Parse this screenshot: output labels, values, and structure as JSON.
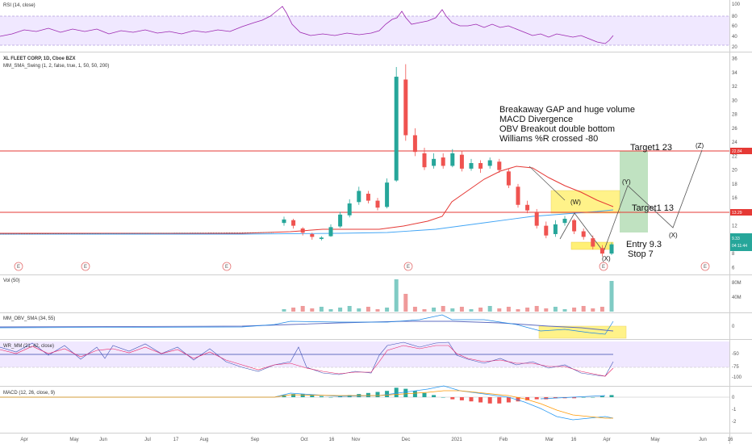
{
  "colors": {
    "up": "#26a69a",
    "down": "#ef5350",
    "rsi_line": "#9c27b0",
    "band_fill": "#e8dcff",
    "hline_red": "#e53935",
    "sma_red": "#e53935",
    "sma_blue": "#2196f3",
    "obv_line": "#1e88e5",
    "obv_sma": "#7e57c2",
    "highlight_yellow": "#ffeb3b",
    "target_green": "#a5d6a7"
  },
  "panes": {
    "rsi": {
      "title": "RSI (14, close)",
      "ticks": [
        "100",
        "80",
        "60",
        "40",
        "20"
      ]
    },
    "price": {
      "title": "XL FLEET CORP, 1D, Cboe BZX",
      "subtitle": "MM_SMA_Swing (1, 2, false, true, 1, 50, 50, 200)",
      "ticks": [
        "36",
        "34",
        "32",
        "30",
        "28",
        "26",
        "24",
        "22",
        "20",
        "18",
        "16",
        "14",
        "12",
        "10",
        "8",
        "6"
      ],
      "tag_high": "22.84",
      "tag_mid": "13.29",
      "tag_last": "9.33",
      "tag_last2": "04:11:44",
      "earnings": [
        "E",
        "E",
        "E",
        "E",
        "E",
        "E"
      ]
    },
    "vol": {
      "title": "Vol (50)",
      "ticks": [
        "80M",
        "40M"
      ]
    },
    "obv": {
      "title": "MM_OBV_SMA (34, 55)",
      "ticks": [
        "0"
      ]
    },
    "wr": {
      "title": "WR_MM (21, 42, close)",
      "ticks": [
        "-50",
        "-75",
        "-100"
      ]
    },
    "macd": {
      "title": "MACD (12, 26, close, 9)",
      "ticks": [
        "0",
        "-1",
        "-2"
      ]
    }
  },
  "annotations": {
    "line1": "Breakaway GAP and huge volume",
    "line2": "MACD Divergence",
    "line3": "OBV Breakout double bottom",
    "line4": "Williams %R crossed -80",
    "target1_top": "Target1 23",
    "target1_mid": "Target1 13",
    "entry": "Entry 9.3",
    "stop": "Stop 7",
    "w": "(W)",
    "x1": "(X)",
    "y": "(Y)",
    "x2": "(X)",
    "z": "(Z)"
  },
  "x_axis": [
    "Apr",
    "May",
    "Jun",
    "Jul",
    "17",
    "Aug",
    "Sep",
    "Oct",
    "16",
    "Nov",
    "Dec",
    "2021",
    "Feb",
    "Mar",
    "16",
    "Apr",
    "May",
    "Jun",
    "16"
  ],
  "chart_data": {
    "type": "candlestick",
    "title": "XL FLEET CORP, 1D, Cboe BZX",
    "ylim": [
      5,
      37
    ],
    "hlines": [
      22.84,
      13.29
    ],
    "candles": [
      {
        "x": "Sep",
        "o": 12.4,
        "c": 12.9,
        "h": 13.3,
        "l": 12.0
      },
      {
        "x": "Sep",
        "o": 12.8,
        "c": 12.0,
        "h": 13.0,
        "l": 11.6
      },
      {
        "x": "Oct",
        "o": 11.6,
        "c": 11.0,
        "h": 11.8,
        "l": 10.6
      },
      {
        "x": "Oct",
        "o": 10.8,
        "c": 10.4,
        "h": 11.0,
        "l": 10.0
      },
      {
        "x": "Nov",
        "o": 10.1,
        "c": 10.3,
        "h": 10.5,
        "l": 9.9
      },
      {
        "x": "Nov",
        "o": 10.5,
        "c": 11.8,
        "h": 12.2,
        "l": 10.4
      },
      {
        "x": "Nov",
        "o": 11.9,
        "c": 13.6,
        "h": 14.0,
        "l": 11.7
      },
      {
        "x": "Dec",
        "o": 13.5,
        "c": 15.2,
        "h": 15.8,
        "l": 13.2
      },
      {
        "x": "Dec",
        "o": 15.4,
        "c": 17.0,
        "h": 17.6,
        "l": 15.0
      },
      {
        "x": "Dec",
        "o": 16.6,
        "c": 15.6,
        "h": 17.0,
        "l": 15.2
      },
      {
        "x": "Dec",
        "o": 15.6,
        "c": 14.6,
        "h": 16.0,
        "l": 14.2
      },
      {
        "x": "Dec",
        "o": 14.7,
        "c": 18.2,
        "h": 18.8,
        "l": 14.5
      },
      {
        "x": "Dec",
        "o": 18.5,
        "c": 33.4,
        "h": 34.8,
        "l": 18.3
      },
      {
        "x": "Dec",
        "o": 33.0,
        "c": 25.0,
        "h": 35.2,
        "l": 24.2
      },
      {
        "x": "2021",
        "o": 25.0,
        "c": 22.6,
        "h": 26.0,
        "l": 22.0
      },
      {
        "x": "2021",
        "o": 22.4,
        "c": 20.4,
        "h": 23.2,
        "l": 20.0
      },
      {
        "x": "2021",
        "o": 20.6,
        "c": 21.6,
        "h": 22.4,
        "l": 20.2
      },
      {
        "x": "2021",
        "o": 21.8,
        "c": 20.6,
        "h": 22.4,
        "l": 20.2
      },
      {
        "x": "2021",
        "o": 20.6,
        "c": 22.4,
        "h": 23.0,
        "l": 20.4
      },
      {
        "x": "Feb",
        "o": 22.2,
        "c": 20.2,
        "h": 22.8,
        "l": 19.8
      },
      {
        "x": "Feb",
        "o": 20.2,
        "c": 21.0,
        "h": 21.6,
        "l": 19.9
      },
      {
        "x": "Feb",
        "o": 21.0,
        "c": 20.2,
        "h": 21.4,
        "l": 19.6
      },
      {
        "x": "Feb",
        "o": 20.6,
        "c": 21.4,
        "h": 21.8,
        "l": 20.2
      },
      {
        "x": "Feb",
        "o": 21.2,
        "c": 20.0,
        "h": 21.6,
        "l": 19.6
      },
      {
        "x": "Feb",
        "o": 19.8,
        "c": 17.8,
        "h": 20.2,
        "l": 17.4
      },
      {
        "x": "Mar",
        "o": 17.6,
        "c": 15.0,
        "h": 18.0,
        "l": 14.6
      },
      {
        "x": "Mar",
        "o": 15.0,
        "c": 14.2,
        "h": 15.6,
        "l": 13.8
      },
      {
        "x": "Mar",
        "o": 14.0,
        "c": 12.0,
        "h": 14.4,
        "l": 11.6
      },
      {
        "x": "Mar",
        "o": 12.0,
        "c": 10.6,
        "h": 12.6,
        "l": 10.2
      },
      {
        "x": "16",
        "o": 10.8,
        "c": 12.2,
        "h": 12.8,
        "l": 10.4
      },
      {
        "x": "16",
        "o": 12.4,
        "c": 13.0,
        "h": 13.4,
        "l": 12.0
      },
      {
        "x": "16",
        "o": 12.8,
        "c": 11.2,
        "h": 13.0,
        "l": 10.8
      },
      {
        "x": "16",
        "o": 11.2,
        "c": 10.4,
        "h": 11.6,
        "l": 10.0
      },
      {
        "x": "Apr",
        "o": 10.2,
        "c": 9.0,
        "h": 10.6,
        "l": 8.6
      },
      {
        "x": "Apr",
        "o": 8.8,
        "c": 8.0,
        "h": 9.2,
        "l": 7.6
      },
      {
        "x": "Apr",
        "o": 8.0,
        "c": 9.33,
        "h": 9.6,
        "l": 7.8
      }
    ]
  }
}
